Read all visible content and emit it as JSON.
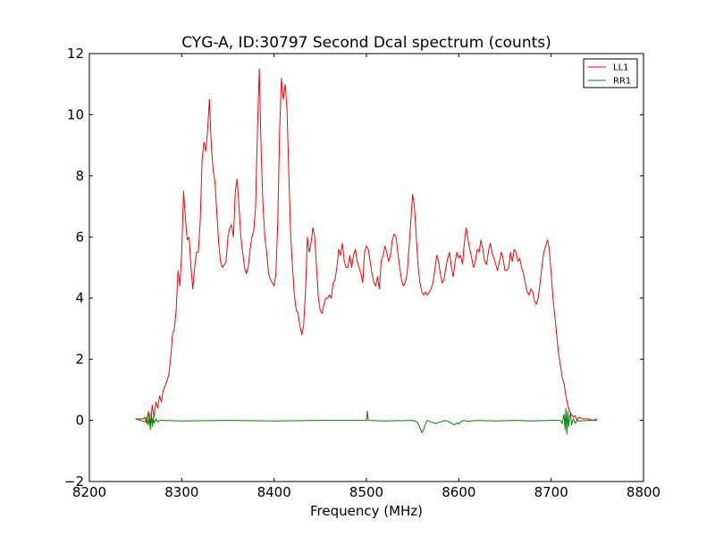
{
  "chart_data": {
    "type": "line",
    "title": "CYG-A, ID:30797 Second Dcal spectrum (counts)",
    "xlabel": "Frequency (MHz)",
    "ylabel": "",
    "xlim": [
      8200,
      8800
    ],
    "ylim": [
      -2,
      12
    ],
    "xticks": [
      8200,
      8300,
      8400,
      8500,
      8600,
      8700,
      8800
    ],
    "xtick_labels": [
      "8200",
      "8300",
      "8400",
      "8500",
      "8600",
      "8700",
      "8800"
    ],
    "yticks": [
      -2,
      0,
      2,
      4,
      6,
      8,
      10,
      12
    ],
    "ytick_labels": [
      "−2",
      "0",
      "2",
      "4",
      "6",
      "8",
      "10",
      "12"
    ],
    "grid": false,
    "legend_position": "top-right",
    "series": [
      {
        "name": "LL1",
        "color": "#ff0000",
        "x": [
          8250,
          8258,
          8260,
          8262,
          8264,
          8266,
          8268,
          8270,
          8272,
          8274,
          8276,
          8278,
          8280,
          8283,
          8286,
          8288,
          8290,
          8292,
          8294,
          8296,
          8298,
          8300,
          8302,
          8304,
          8306,
          8308,
          8310,
          8312,
          8314,
          8316,
          8318,
          8320,
          8322,
          8324,
          8326,
          8328,
          8330,
          8332,
          8334,
          8336,
          8338,
          8340,
          8342,
          8344,
          8346,
          8348,
          8350,
          8352,
          8354,
          8356,
          8358,
          8360,
          8362,
          8364,
          8366,
          8368,
          8370,
          8372,
          8374,
          8376,
          8378,
          8380,
          8382,
          8384,
          8386,
          8388,
          8390,
          8392,
          8394,
          8396,
          8398,
          8400,
          8402,
          8404,
          8406,
          8408,
          8410,
          8412,
          8414,
          8416,
          8418,
          8420,
          8422,
          8424,
          8426,
          8428,
          8430,
          8432,
          8434,
          8436,
          8438,
          8440,
          8442,
          8444,
          8446,
          8448,
          8450,
          8452,
          8454,
          8456,
          8458,
          8460,
          8462,
          8464,
          8466,
          8468,
          8470,
          8472,
          8474,
          8476,
          8478,
          8480,
          8482,
          8484,
          8486,
          8488,
          8490,
          8492,
          8494,
          8496,
          8498,
          8500,
          8502,
          8504,
          8506,
          8508,
          8510,
          8512,
          8514,
          8516,
          8518,
          8520,
          8522,
          8524,
          8526,
          8528,
          8530,
          8532,
          8534,
          8536,
          8538,
          8540,
          8542,
          8544,
          8546,
          8548,
          8550,
          8552,
          8554,
          8556,
          8558,
          8560,
          8562,
          8564,
          8566,
          8568,
          8570,
          8572,
          8574,
          8576,
          8578,
          8580,
          8582,
          8584,
          8586,
          8588,
          8590,
          8592,
          8594,
          8596,
          8598,
          8600,
          8602,
          8604,
          8606,
          8608,
          8610,
          8612,
          8614,
          8616,
          8618,
          8620,
          8622,
          8624,
          8626,
          8628,
          8630,
          8632,
          8634,
          8636,
          8638,
          8640,
          8642,
          8644,
          8646,
          8648,
          8650,
          8652,
          8654,
          8656,
          8658,
          8660,
          8662,
          8664,
          8666,
          8668,
          8670,
          8672,
          8674,
          8676,
          8678,
          8680,
          8682,
          8684,
          8686,
          8688,
          8690,
          8692,
          8694,
          8696,
          8698,
          8700,
          8702,
          8704,
          8706,
          8708,
          8710,
          8712,
          8714,
          8716,
          8718,
          8720,
          8722,
          8724,
          8726,
          8728,
          8730,
          8735,
          8740,
          8745,
          8750
        ],
        "y": [
          0.05,
          0.05,
          0.1,
          -0.1,
          0.3,
          -0.2,
          0.5,
          0.1,
          0.6,
          0.4,
          0.8,
          0.6,
          1.0,
          1.2,
          1.5,
          2.0,
          2.8,
          3.0,
          3.6,
          4.9,
          4.4,
          5.5,
          7.5,
          6.6,
          5.9,
          6.0,
          5.0,
          4.3,
          5.0,
          5.5,
          5.5,
          6.5,
          8.5,
          9.1,
          8.8,
          9.5,
          10.5,
          9.0,
          8.2,
          7.8,
          6.8,
          5.8,
          5.2,
          5.0,
          5.1,
          5.2,
          6.0,
          6.3,
          6.4,
          6.0,
          7.5,
          7.9,
          7.0,
          6.0,
          5.5,
          5.0,
          4.8,
          5.0,
          5.6,
          6.0,
          6.2,
          7.0,
          9.5,
          11.5,
          8.8,
          7.0,
          6.0,
          5.5,
          4.8,
          4.6,
          4.5,
          4.4,
          4.8,
          6.5,
          9.5,
          11.2,
          10.5,
          11.0,
          10.2,
          8.0,
          6.0,
          5.0,
          4.1,
          3.6,
          3.5,
          3.1,
          2.8,
          3.1,
          4.2,
          6.0,
          5.5,
          5.8,
          6.3,
          6.0,
          5.0,
          4.0,
          3.6,
          3.5,
          3.8,
          4.0,
          4.0,
          4.1,
          4.0,
          4.5,
          4.6,
          5.0,
          5.6,
          5.4,
          5.8,
          5.2,
          5.0,
          5.0,
          5.4,
          5.0,
          5.4,
          5.6,
          5.2,
          5.0,
          4.8,
          4.5,
          5.5,
          5.7,
          5.6,
          5.2,
          4.8,
          4.5,
          4.4,
          4.7,
          4.3,
          5.2,
          5.4,
          5.7,
          5.5,
          5.2,
          5.4,
          5.9,
          6.1,
          6.0,
          5.5,
          5.0,
          4.6,
          4.4,
          4.5,
          4.8,
          5.6,
          6.5,
          7.4,
          7.0,
          6.0,
          5.0,
          4.5,
          4.2,
          4.1,
          4.2,
          4.1,
          4.2,
          4.3,
          4.5,
          4.9,
          5.4,
          5.2,
          4.8,
          4.5,
          4.6,
          5.0,
          5.3,
          5.5,
          5.0,
          4.7,
          5.2,
          5.5,
          5.3,
          5.4,
          5.1,
          5.8,
          6.3,
          5.9,
          5.6,
          5.3,
          5.0,
          5.2,
          5.6,
          5.5,
          5.9,
          5.6,
          5.2,
          5.1,
          5.5,
          5.8,
          5.5,
          5.3,
          5.1,
          4.9,
          5.2,
          5.5,
          5.3,
          4.9,
          4.9,
          5.0,
          5.5,
          5.2,
          5.6,
          5.5,
          5.2,
          5.3,
          5.0,
          4.8,
          4.5,
          4.2,
          4.1,
          4.3,
          4.2,
          3.9,
          3.8,
          4.0,
          4.5,
          5.0,
          5.5,
          5.7,
          5.9,
          5.6,
          4.8,
          4.0,
          3.4,
          2.8,
          2.2,
          1.8,
          1.4,
          1.2,
          0.8,
          0.5,
          0.3,
          0.2,
          0.1,
          0.15,
          0.0,
          0.1,
          0.05,
          0.05,
          0.0,
          0.05
        ]
      },
      {
        "name": "RR1",
        "color": "#008000",
        "x": [
          8250,
          8256,
          8260,
          8262,
          8264,
          8265,
          8266,
          8267,
          8268,
          8269,
          8270,
          8272,
          8274,
          8276,
          8280,
          8300,
          8350,
          8400,
          8450,
          8480,
          8498,
          8500,
          8501,
          8502,
          8520,
          8550,
          8555,
          8558,
          8560,
          8562,
          8564,
          8566,
          8570,
          8575,
          8580,
          8585,
          8590,
          8595,
          8598,
          8600,
          8602,
          8605,
          8610,
          8620,
          8640,
          8660,
          8680,
          8700,
          8710,
          8712,
          8714,
          8715,
          8716,
          8717,
          8718,
          8719,
          8720,
          8721,
          8722,
          8724,
          8726,
          8728,
          8730,
          8740,
          8750
        ],
        "y": [
          0.05,
          0.0,
          -0.05,
          0.1,
          -0.15,
          0.2,
          -0.3,
          0.25,
          -0.2,
          0.1,
          -0.1,
          0.05,
          -0.05,
          0.0,
          0.0,
          -0.02,
          0.0,
          -0.02,
          0.0,
          0.0,
          0.0,
          0.0,
          0.3,
          0.0,
          -0.02,
          0.0,
          -0.05,
          -0.25,
          -0.4,
          -0.3,
          -0.1,
          0.0,
          -0.05,
          -0.1,
          -0.05,
          0.0,
          -0.05,
          -0.15,
          -0.08,
          -0.12,
          -0.05,
          0.0,
          -0.03,
          0.0,
          -0.02,
          0.0,
          -0.02,
          0.0,
          0.0,
          -0.1,
          0.2,
          -0.3,
          0.4,
          -0.45,
          0.3,
          -0.2,
          0.1,
          0.25,
          -0.15,
          0.05,
          -0.1,
          0.0,
          -0.02,
          0.0,
          0.0
        ]
      }
    ]
  }
}
